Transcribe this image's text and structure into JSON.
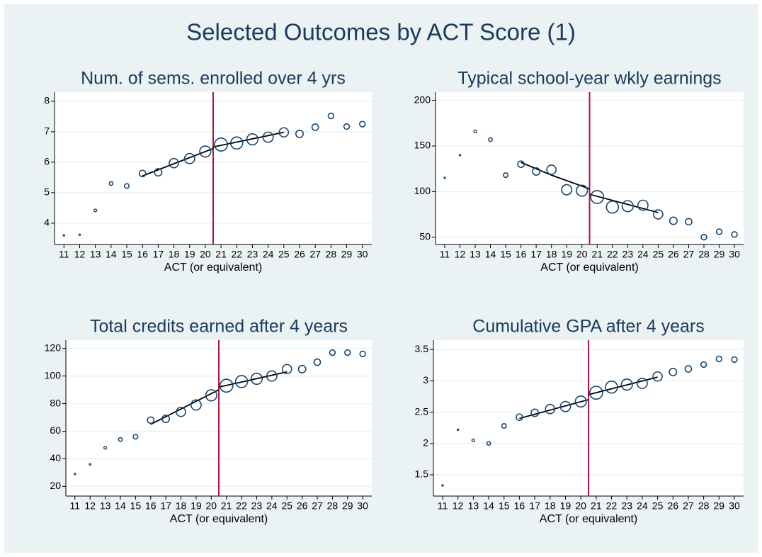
{
  "title": "Selected Outcomes by ACT Score (1)",
  "chart_data": [
    {
      "type": "scatter",
      "title": "Num. of sems. enrolled over 4 yrs",
      "xlabel": "ACT (or equivalent)",
      "x": [
        11,
        12,
        13,
        14,
        15,
        16,
        17,
        18,
        19,
        20,
        21,
        22,
        23,
        24,
        25,
        26,
        27,
        28,
        29,
        30
      ],
      "values": [
        3.6,
        3.62,
        4.42,
        5.3,
        5.22,
        5.63,
        5.67,
        5.97,
        6.12,
        6.35,
        6.58,
        6.63,
        6.75,
        6.82,
        6.98,
        6.93,
        7.15,
        7.52,
        7.17,
        7.25
      ],
      "sizes": [
        0.8,
        0.8,
        1.5,
        2,
        2.5,
        3.5,
        4,
        5,
        5.5,
        6,
        7,
        6.5,
        6,
        5.5,
        5,
        4,
        3.5,
        3,
        3,
        3
      ],
      "fit_left": {
        "x": [
          16,
          20.5
        ],
        "y": [
          5.55,
          6.45
        ]
      },
      "fit_right": {
        "x": [
          20.5,
          25
        ],
        "y": [
          6.5,
          6.98
        ]
      },
      "cutoff": 20.5,
      "color": "#1a476f",
      "cutoff_color": "#b5123f",
      "xlim": [
        10.4,
        30.6
      ],
      "ylim": [
        3.3,
        8.3
      ],
      "xticks": [
        11,
        12,
        13,
        14,
        15,
        16,
        17,
        18,
        19,
        20,
        21,
        22,
        23,
        24,
        25,
        26,
        27,
        28,
        29,
        30
      ],
      "yticks": [
        4,
        5,
        6,
        7,
        8
      ],
      "grid": true
    },
    {
      "type": "scatter",
      "title": "Typical school-year wkly earnings",
      "xlabel": "ACT (or equivalent)",
      "x": [
        11,
        12,
        13,
        14,
        15,
        16,
        17,
        18,
        19,
        20,
        21,
        22,
        23,
        24,
        25,
        26,
        27,
        28,
        29,
        30
      ],
      "values": [
        115,
        140,
        166,
        157,
        118,
        130,
        122,
        124,
        102,
        101,
        94,
        83,
        84,
        85,
        75,
        68,
        67,
        50,
        56,
        53
      ],
      "sizes": [
        0.8,
        0.8,
        1.5,
        2,
        2.5,
        3.5,
        4,
        5,
        5.5,
        6,
        7,
        6.5,
        6,
        5.5,
        5,
        4,
        3.5,
        3,
        3,
        3
      ],
      "fit_left": {
        "x": [
          16,
          18,
          20.5
        ],
        "y": [
          132,
          118,
          103
        ]
      },
      "fit_right": {
        "x": [
          20.5,
          25
        ],
        "y": [
          97,
          77
        ]
      },
      "cutoff": 20.5,
      "color": "#1a476f",
      "cutoff_color": "#b5123f",
      "xlim": [
        10.4,
        30.6
      ],
      "ylim": [
        42,
        209
      ],
      "xticks": [
        11,
        12,
        13,
        14,
        15,
        16,
        17,
        18,
        19,
        20,
        21,
        22,
        23,
        24,
        25,
        26,
        27,
        28,
        29,
        30
      ],
      "yticks": [
        50,
        100,
        150,
        200
      ],
      "grid": true
    },
    {
      "type": "scatter",
      "title": "Total credits earned after 4 years",
      "xlabel": "ACT (or equivalent)",
      "x": [
        11,
        12,
        13,
        14,
        15,
        16,
        17,
        18,
        19,
        20,
        21,
        22,
        23,
        24,
        25,
        26,
        27,
        28,
        29,
        30
      ],
      "values": [
        29,
        36,
        48,
        54,
        56,
        68,
        69,
        74,
        79,
        86,
        93,
        96,
        98,
        100,
        105,
        105,
        110,
        117,
        117,
        116
      ],
      "sizes": [
        0.8,
        0.8,
        1.5,
        2,
        2.5,
        3.5,
        4,
        5,
        5.5,
        6,
        7,
        6.5,
        6,
        5.5,
        5,
        4,
        3.5,
        3,
        3,
        3
      ],
      "fit_left": {
        "x": [
          16,
          20.5
        ],
        "y": [
          65,
          90
        ]
      },
      "fit_right": {
        "x": [
          20.5,
          25
        ],
        "y": [
          92,
          103
        ]
      },
      "cutoff": 20.5,
      "color": "#1a476f",
      "cutoff_color": "#b5123f",
      "xlim": [
        10.4,
        30.6
      ],
      "ylim": [
        13,
        126
      ],
      "xticks": [
        11,
        12,
        13,
        14,
        15,
        16,
        17,
        18,
        19,
        20,
        21,
        22,
        23,
        24,
        25,
        26,
        27,
        28,
        29,
        30
      ],
      "yticks": [
        20,
        40,
        60,
        80,
        100,
        120
      ],
      "grid": true
    },
    {
      "type": "scatter",
      "title": "Cumulative GPA after 4 years",
      "xlabel": "ACT (or equivalent)",
      "x": [
        11,
        12,
        13,
        14,
        15,
        16,
        17,
        18,
        19,
        20,
        21,
        22,
        23,
        24,
        25,
        26,
        27,
        28,
        29,
        30
      ],
      "values": [
        1.33,
        2.22,
        2.05,
        2.0,
        2.28,
        2.42,
        2.49,
        2.55,
        2.59,
        2.67,
        2.81,
        2.9,
        2.94,
        2.96,
        3.07,
        3.14,
        3.19,
        3.26,
        3.35,
        3.34
      ],
      "sizes": [
        0.8,
        0.8,
        1.5,
        2,
        2.5,
        3.5,
        4,
        5,
        5.5,
        6,
        7,
        6.5,
        6,
        5.5,
        5,
        4,
        3.5,
        3,
        3,
        3
      ],
      "fit_left": {
        "x": [
          16,
          20.5
        ],
        "y": [
          2.4,
          2.7
        ]
      },
      "fit_right": {
        "x": [
          20.5,
          25
        ],
        "y": [
          2.78,
          3.06
        ]
      },
      "cutoff": 20.5,
      "color": "#1a476f",
      "cutoff_color": "#b5123f",
      "xlim": [
        10.4,
        30.6
      ],
      "ylim": [
        1.16,
        3.65
      ],
      "xticks": [
        11,
        12,
        13,
        14,
        15,
        16,
        17,
        18,
        19,
        20,
        21,
        22,
        23,
        24,
        25,
        26,
        27,
        28,
        29,
        30
      ],
      "yticks": [
        1.5,
        2,
        2.5,
        3,
        3.5
      ],
      "grid": true
    }
  ]
}
